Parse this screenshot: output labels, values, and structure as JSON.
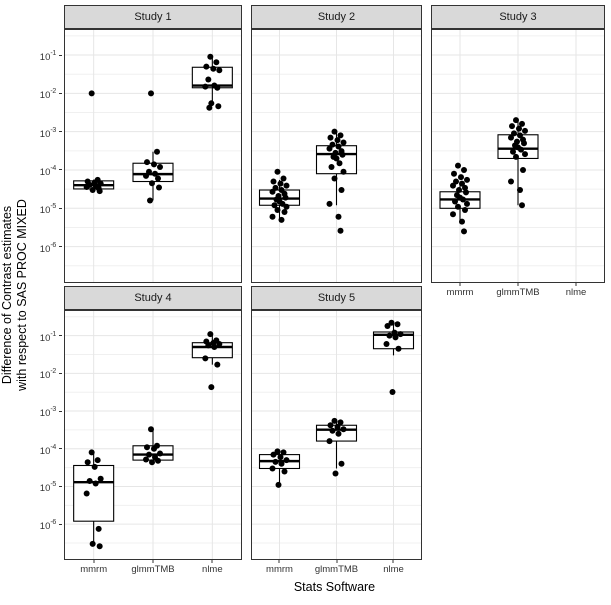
{
  "chart_data": {
    "type": "boxplot",
    "title": "",
    "xlabel": "Stats Software",
    "ylabel_line1": "Difference of Contrast estimates",
    "ylabel_line2": "with respect to SAS PROC MIXED",
    "x_categories": [
      "mmrm",
      "glmmTMB",
      "nlme"
    ],
    "y_scale": "log10",
    "y_tick_exponents": [
      -1,
      -2,
      -3,
      -4,
      -5,
      -6
    ],
    "y_log_range": [
      -6.95,
      -0.32
    ],
    "legend": "none",
    "grid": {
      "major_color": "#e6e6e6",
      "minor_color": "#f0f0f0"
    },
    "colors": {
      "panel_border": "#333333",
      "strip_bg": "#d9d9d9",
      "data": "#000000",
      "axis_text": "#333333"
    },
    "facets": [
      {
        "label": "Study 1",
        "groups": [
          {
            "category": "mmrm",
            "box": {
              "q1": 3.2e-05,
              "median": 4e-05,
              "q3": 5.2e-05,
              "whisker_low": 2.8e-05,
              "whisker_high": 5.6e-05
            },
            "points": [
              0.01,
              5.5e-05,
              5e-05,
              4.7e-05,
              4.4e-05,
              4.1e-05,
              3.9e-05,
              3.6e-05,
              3.3e-05,
              3e-05,
              2.8e-05
            ]
          },
          {
            "category": "glmmTMB",
            "box": {
              "q1": 5e-05,
              "median": 7.8e-05,
              "q3": 0.00015,
              "whisker_low": 1.6e-05,
              "whisker_high": 0.0003
            },
            "points": [
              0.01,
              0.0003,
              0.00016,
              0.00014,
              0.00012,
              9e-05,
              8e-05,
              7e-05,
              6e-05,
              4.5e-05,
              3.5e-05,
              1.6e-05
            ]
          },
          {
            "category": "nlme",
            "box": {
              "q1": 0.014,
              "median": 0.016,
              "q3": 0.048,
              "whisker_low": 0.0048,
              "whisker_high": 0.09
            },
            "points": [
              0.09,
              0.065,
              0.05,
              0.044,
              0.04,
              0.023,
              0.016,
              0.015,
              0.014,
              0.0055,
              0.0046,
              0.0042
            ]
          }
        ]
      },
      {
        "label": "Study 2",
        "groups": [
          {
            "category": "mmrm",
            "box": {
              "q1": 1.2e-05,
              "median": 1.8e-05,
              "q3": 3e-05,
              "whisker_low": 5e-06,
              "whisker_high": 5.5e-05
            },
            "points": [
              9e-05,
              6e-05,
              5e-05,
              4.4e-05,
              3.9e-05,
              3.4e-05,
              3e-05,
              2.7e-05,
              2.4e-05,
              2.1e-05,
              1.9e-05,
              1.7e-05,
              1.5e-05,
              1.3e-05,
              1.2e-05,
              1.1e-05,
              9e-06,
              8e-06,
              6e-06,
              5e-06
            ]
          },
          {
            "category": "glmmTMB",
            "box": {
              "q1": 8e-05,
              "median": 0.00026,
              "q3": 0.00043,
              "whisker_low": 1.2e-05,
              "whisker_high": 0.001
            },
            "points": [
              0.001,
              0.0008,
              0.0007,
              0.0006,
              0.00052,
              0.00046,
              0.00041,
              0.00036,
              0.00031,
              0.00028,
              0.00025,
              0.00022,
              0.0002,
              0.00015,
              0.00012,
              9e-05,
              6e-05,
              3e-05,
              1.3e-05,
              6e-06,
              2.6e-06
            ]
          }
        ]
      },
      {
        "label": "Study 3",
        "groups": [
          {
            "category": "mmrm",
            "box": {
              "q1": 1e-05,
              "median": 1.7e-05,
              "q3": 2.7e-05,
              "whisker_low": 4e-06,
              "whisker_high": 5e-05
            },
            "points": [
              0.00013,
              0.0001,
              8e-05,
              6.5e-05,
              5.5e-05,
              5e-05,
              4.4e-05,
              3.9e-05,
              3.4e-05,
              3e-05,
              2.6e-05,
              2.2e-05,
              1.9e-05,
              1.7e-05,
              1.5e-05,
              1.3e-05,
              1.1e-05,
              9e-06,
              7e-06,
              4.5e-06,
              2.5e-06
            ]
          },
          {
            "category": "glmmTMB",
            "box": {
              "q1": 0.0002,
              "median": 0.00036,
              "q3": 0.00083,
              "whisker_low": 1.2e-05,
              "whisker_high": 0.002
            },
            "points": [
              0.002,
              0.0016,
              0.0014,
              0.0012,
              0.00105,
              0.0009,
              0.0008,
              0.0007,
              0.00062,
              0.00055,
              0.0005,
              0.00044,
              0.00039,
              0.00034,
              0.0003,
              0.00026,
              0.00022,
              0.0001,
              5e-05,
              3e-05,
              1.2e-05
            ]
          }
        ]
      },
      {
        "label": "Study 4",
        "groups": [
          {
            "category": "mmrm",
            "box": {
              "q1": 1.2e-06,
              "median": 1.3e-05,
              "q3": 3.6e-05,
              "whisker_low": 2.6e-07,
              "whisker_high": 8e-05
            },
            "points": [
              8e-05,
              5e-05,
              4.4e-05,
              3.3e-05,
              1.6e-05,
              1.4e-05,
              1.2e-05,
              6.5e-06,
              7.5e-07,
              3e-07,
              2.6e-07
            ]
          },
          {
            "category": "glmmTMB",
            "box": {
              "q1": 5e-05,
              "median": 7e-05,
              "q3": 0.00012,
              "whisker_low": 4.2e-05,
              "whisker_high": 0.00033
            },
            "points": [
              0.00033,
              0.00012,
              0.00011,
              0.0001,
              7.5e-05,
              7e-05,
              6e-05,
              5.2e-05,
              4.8e-05,
              4.4e-05
            ]
          },
          {
            "category": "nlme",
            "box": {
              "q1": 0.026,
              "median": 0.05,
              "q3": 0.065,
              "whisker_low": 0.017,
              "whisker_high": 0.11
            },
            "points": [
              0.11,
              0.075,
              0.07,
              0.064,
              0.06,
              0.055,
              0.05,
              0.025,
              0.017,
              0.0043
            ]
          }
        ]
      },
      {
        "label": "Study 5",
        "groups": [
          {
            "category": "mmrm",
            "box": {
              "q1": 3e-05,
              "median": 4.7e-05,
              "q3": 7e-05,
              "whisker_low": 1.1e-05,
              "whisker_high": 8.5e-05
            },
            "points": [
              8.5e-05,
              8e-05,
              7e-05,
              6e-05,
              5e-05,
              4.5e-05,
              4e-05,
              3e-05,
              2.5e-05,
              1.1e-05
            ]
          },
          {
            "category": "glmmTMB",
            "box": {
              "q1": 0.00016,
              "median": 0.00032,
              "q3": 0.00042,
              "whisker_low": 3e-05,
              "whisker_high": 0.00055
            },
            "points": [
              0.00055,
              0.0005,
              0.00042,
              0.00038,
              0.00033,
              0.0003,
              0.00025,
              0.00016,
              4e-05,
              2.2e-05
            ]
          },
          {
            "category": "nlme",
            "box": {
              "q1": 0.045,
              "median": 0.105,
              "q3": 0.125,
              "whisker_low": 0.03,
              "whisker_high": 0.22
            },
            "points": [
              0.22,
              0.2,
              0.18,
              0.12,
              0.11,
              0.1,
              0.09,
              0.06,
              0.045,
              0.0032
            ]
          }
        ]
      }
    ]
  }
}
